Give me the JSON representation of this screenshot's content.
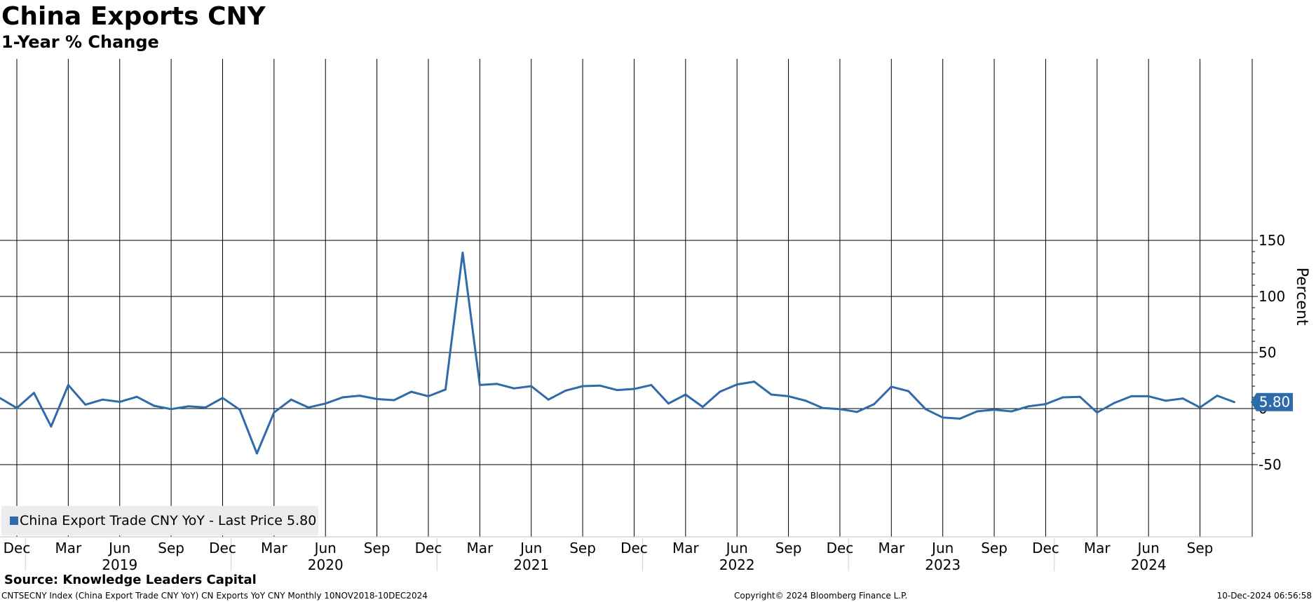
{
  "header": {
    "title": "China Exports CNY",
    "subtitle": "1-Year % Change"
  },
  "source": "Source: Knowledge Leaders Capital",
  "footer": {
    "left": "CNTSECNY Index (China Export Trade CNY YoY) CN Exports YoY CNY  Monthly 10NOV2018-10DEC2024",
    "middle": "Copyright© 2024 Bloomberg Finance L.P.",
    "right": "10-Dec-2024 06:56:58"
  },
  "legend": {
    "label": "China Export Trade CNY YoY - Last Price 5.80"
  },
  "colors": {
    "series": "#2f6aaa",
    "grid": "#000000",
    "legend_bg": "#ececec"
  },
  "chart_data": {
    "type": "line",
    "title": "China Exports CNY",
    "subtitle": "1-Year % Change",
    "xlabel": "",
    "ylabel": "Percent",
    "ylim": [
      -57,
      156
    ],
    "y_ticks": [
      150,
      100,
      50,
      0,
      -50
    ],
    "x_range": [
      "2018-11",
      "2024-12"
    ],
    "grid": true,
    "legend_position": "bottom-left",
    "last_value_label": "5.80",
    "month_ticks": [
      {
        "label": "Dec",
        "date": "2018-12"
      },
      {
        "label": "Mar",
        "date": "2019-03"
      },
      {
        "label": "Jun",
        "date": "2019-06"
      },
      {
        "label": "Sep",
        "date": "2019-09"
      },
      {
        "label": "Dec",
        "date": "2019-12"
      },
      {
        "label": "Mar",
        "date": "2020-03"
      },
      {
        "label": "Jun",
        "date": "2020-06"
      },
      {
        "label": "Sep",
        "date": "2020-09"
      },
      {
        "label": "Dec",
        "date": "2020-12"
      },
      {
        "label": "Mar",
        "date": "2021-03"
      },
      {
        "label": "Jun",
        "date": "2021-06"
      },
      {
        "label": "Sep",
        "date": "2021-09"
      },
      {
        "label": "Dec",
        "date": "2021-12"
      },
      {
        "label": "Mar",
        "date": "2022-03"
      },
      {
        "label": "Jun",
        "date": "2022-06"
      },
      {
        "label": "Sep",
        "date": "2022-09"
      },
      {
        "label": "Dec",
        "date": "2022-12"
      },
      {
        "label": "Mar",
        "date": "2023-03"
      },
      {
        "label": "Jun",
        "date": "2023-06"
      },
      {
        "label": "Sep",
        "date": "2023-09"
      },
      {
        "label": "Dec",
        "date": "2023-12"
      },
      {
        "label": "Mar",
        "date": "2024-03"
      },
      {
        "label": "Jun",
        "date": "2024-06"
      },
      {
        "label": "Sep",
        "date": "2024-09"
      }
    ],
    "year_labels": [
      "2019",
      "2020",
      "2021",
      "2022",
      "2023",
      "2024"
    ],
    "series": [
      {
        "name": "China Export Trade CNY YoY",
        "x": [
          "2018-11",
          "2018-12",
          "2019-01",
          "2019-02",
          "2019-03",
          "2019-04",
          "2019-05",
          "2019-06",
          "2019-07",
          "2019-08",
          "2019-09",
          "2019-10",
          "2019-11",
          "2019-12",
          "2020-01",
          "2020-02",
          "2020-03",
          "2020-04",
          "2020-05",
          "2020-06",
          "2020-07",
          "2020-08",
          "2020-09",
          "2020-10",
          "2020-11",
          "2020-12",
          "2021-01",
          "2021-02",
          "2021-03",
          "2021-04",
          "2021-05",
          "2021-06",
          "2021-07",
          "2021-08",
          "2021-09",
          "2021-10",
          "2021-11",
          "2021-12",
          "2022-01",
          "2022-02",
          "2022-03",
          "2022-04",
          "2022-05",
          "2022-06",
          "2022-07",
          "2022-08",
          "2022-09",
          "2022-10",
          "2022-11",
          "2022-12",
          "2023-01",
          "2023-02",
          "2023-03",
          "2023-04",
          "2023-05",
          "2023-06",
          "2023-07",
          "2023-08",
          "2023-09",
          "2023-10",
          "2023-11",
          "2023-12",
          "2024-01",
          "2024-02",
          "2024-03",
          "2024-04",
          "2024-05",
          "2024-06",
          "2024-07",
          "2024-08",
          "2024-09",
          "2024-10",
          "2024-11"
        ],
        "values": [
          9.5,
          0.5,
          14,
          -16,
          21,
          3.5,
          8,
          6,
          10.5,
          2.5,
          -0.5,
          2,
          1,
          9.5,
          -1,
          -40,
          -3.5,
          8,
          1,
          4.5,
          10,
          11.5,
          8.5,
          7.5,
          15,
          11,
          17,
          139,
          21,
          22,
          18,
          20,
          8,
          16,
          20,
          20.5,
          16.5,
          17.5,
          21,
          4.5,
          12.5,
          1.5,
          15,
          21.5,
          24,
          12.5,
          11,
          7,
          0.5,
          -0.5,
          -3,
          4,
          19.5,
          15.5,
          -0.5,
          -8,
          -9,
          -2.5,
          -1,
          -2.5,
          2,
          4,
          10,
          10.5,
          -3.5,
          5,
          11,
          11,
          7,
          9,
          1,
          11.5,
          5.8
        ]
      }
    ]
  }
}
